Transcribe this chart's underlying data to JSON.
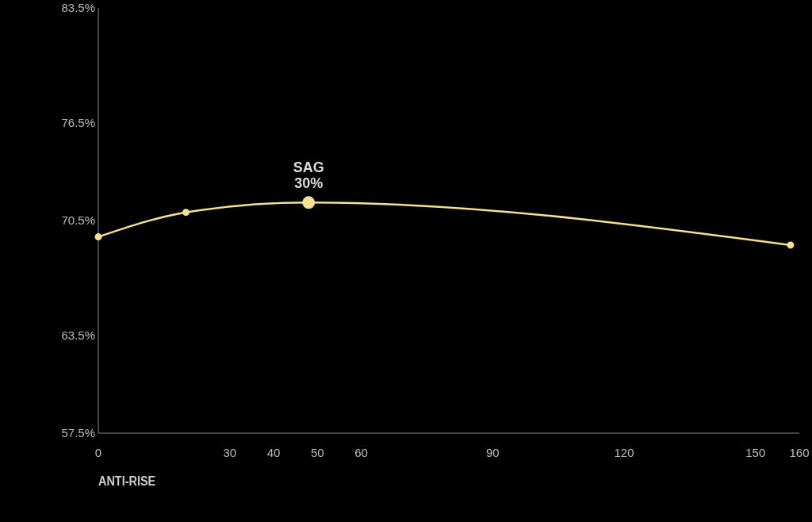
{
  "chart_data": {
    "type": "line",
    "xlabel": "ANTI-RISE",
    "x": [
      0,
      20,
      48,
      158
    ],
    "series": [
      {
        "color": "#f7e08f",
        "values": [
          69.5,
          71.0,
          71.6,
          69.0
        ]
      }
    ],
    "xlim": [
      0,
      160
    ],
    "xticks": [
      0,
      30,
      40,
      50,
      60,
      90,
      120,
      150,
      160
    ],
    "ylim": [
      57.5,
      83.5
    ],
    "yticks": [
      {
        "value": 57.5,
        "label": "57.5%"
      },
      {
        "value": 63.5,
        "label": "63.5%"
      },
      {
        "value": 70.5,
        "label": "70.5%"
      },
      {
        "value": 76.5,
        "label": "76.5%"
      },
      {
        "value": 83.5,
        "label": "83.5%"
      }
    ],
    "marker": "circle",
    "line_style": "solid",
    "grid": false,
    "annotations": [
      {
        "text": "SAG\n30%",
        "x": 48,
        "y": 71.6
      }
    ]
  }
}
